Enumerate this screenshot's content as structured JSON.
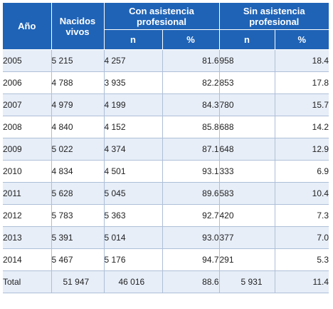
{
  "table": {
    "headers": {
      "year": "Año",
      "births": "Nacidos vivos",
      "with_assistance": "Con asistencia profesional",
      "without_assistance": "Sin asistencia profesional",
      "n": "n",
      "pct": "%"
    },
    "rows": [
      {
        "year": "2005",
        "births": "5 215",
        "with_n": "4 257",
        "with_pct": "81.6",
        "without_n": "958",
        "without_pct": "18.4"
      },
      {
        "year": "2006",
        "births": "4 788",
        "with_n": "3 935",
        "with_pct": "82.2",
        "without_n": "853",
        "without_pct": "17.8"
      },
      {
        "year": "2007",
        "births": "4 979",
        "with_n": "4 199",
        "with_pct": "84.3",
        "without_n": "780",
        "without_pct": "15.7"
      },
      {
        "year": "2008",
        "births": "4 840",
        "with_n": "4 152",
        "with_pct": "85.8",
        "without_n": "688",
        "without_pct": "14.2"
      },
      {
        "year": "2009",
        "births": "5 022",
        "with_n": "4 374",
        "with_pct": "87.1",
        "without_n": "648",
        "without_pct": "12.9"
      },
      {
        "year": "2010",
        "births": "4 834",
        "with_n": "4 501",
        "with_pct": "93.1",
        "without_n": "333",
        "without_pct": "6.9"
      },
      {
        "year": "2011",
        "births": "5 628",
        "with_n": "5 045",
        "with_pct": "89.6",
        "without_n": "583",
        "without_pct": "10.4"
      },
      {
        "year": "2012",
        "births": "5 783",
        "with_n": "5 363",
        "with_pct": "92.7",
        "without_n": "420",
        "without_pct": "7.3"
      },
      {
        "year": "2013",
        "births": "5 391",
        "with_n": "5 014",
        "with_pct": "93.0",
        "without_n": "377",
        "without_pct": "7.0"
      },
      {
        "year": "2014",
        "births": "5 467",
        "with_n": "5 176",
        "with_pct": "94.7",
        "without_n": "291",
        "without_pct": "5.3"
      }
    ],
    "total": {
      "label": "Total",
      "births": "51 947",
      "with_n": "46 016",
      "with_pct": "88.6",
      "without_n": "5 931",
      "without_pct": "11.4"
    },
    "colors": {
      "header_bg": "#1f63b6",
      "header_text": "#ffffff",
      "stripe": "#e7eef8",
      "rule": "#aebfd8"
    }
  }
}
